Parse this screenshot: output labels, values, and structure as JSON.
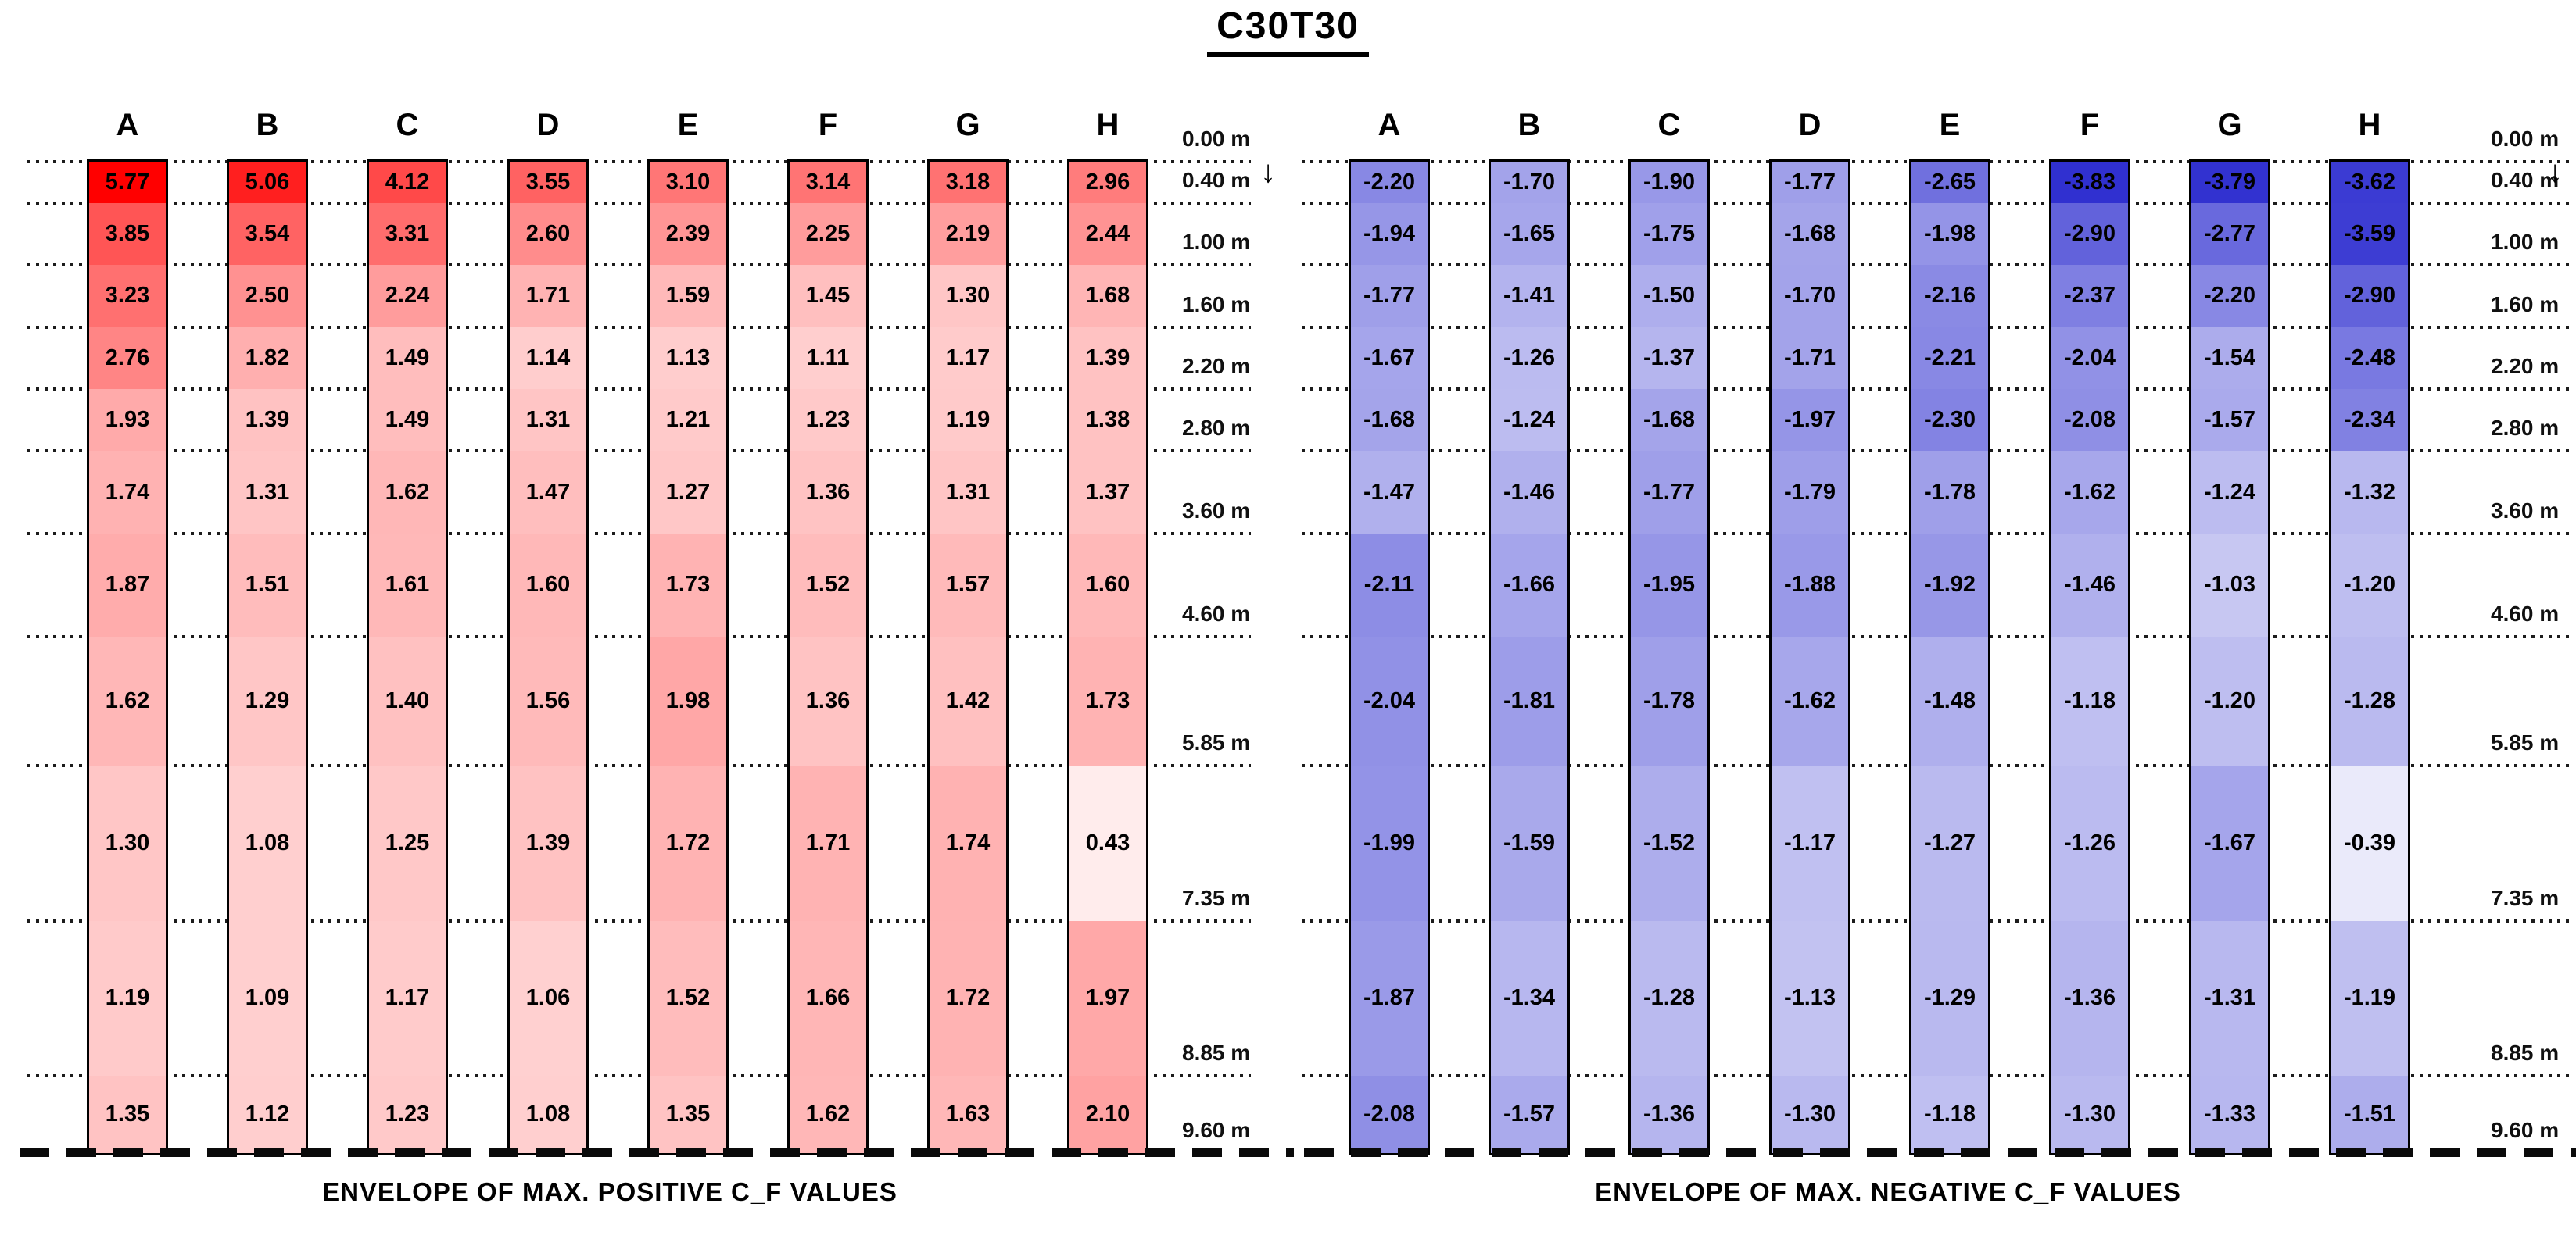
{
  "title": "C30T30",
  "icons": {
    "down_arrow_glyph": "↓"
  },
  "colors": {
    "positive_base": "#FF0000",
    "negative_base": "#3030D0",
    "gridline": "#1C1C1C",
    "text": "#000000"
  },
  "chart_data": [
    {
      "id": "positive",
      "type": "heatmap",
      "caption": "ENVELOPE OF MAX. POSITIVE C_F VALUES",
      "column_labels": [
        "A",
        "B",
        "C",
        "D",
        "E",
        "F",
        "G",
        "H"
      ],
      "depth_labels": [
        "0.00 m",
        "0.40 m",
        "1.00 m",
        "1.60 m",
        "2.20 m",
        "2.80 m",
        "3.60 m",
        "4.60 m",
        "5.85 m",
        "7.35 m",
        "8.85 m",
        "9.60 m"
      ],
      "depths_m": [
        0.0,
        0.4,
        1.0,
        1.6,
        2.2,
        2.8,
        3.6,
        4.6,
        5.85,
        7.35,
        8.85,
        9.6
      ],
      "depth_range_m": [
        0.0,
        9.6
      ],
      "base_color": "#FF0000",
      "max_abs": 5.77,
      "series": [
        {
          "name": "A",
          "values": [
            5.77,
            3.85,
            3.23,
            2.76,
            1.93,
            1.74,
            1.87,
            1.62,
            1.3,
            1.19,
            1.35
          ]
        },
        {
          "name": "B",
          "values": [
            5.06,
            3.54,
            2.5,
            1.82,
            1.39,
            1.31,
            1.51,
            1.29,
            1.08,
            1.09,
            1.12
          ]
        },
        {
          "name": "C",
          "values": [
            4.12,
            3.31,
            2.24,
            1.49,
            1.49,
            1.62,
            1.61,
            1.4,
            1.25,
            1.17,
            1.23
          ]
        },
        {
          "name": "D",
          "values": [
            3.55,
            2.6,
            1.71,
            1.14,
            1.31,
            1.47,
            1.6,
            1.56,
            1.39,
            1.06,
            1.08
          ]
        },
        {
          "name": "E",
          "values": [
            3.1,
            2.39,
            1.59,
            1.13,
            1.21,
            1.27,
            1.73,
            1.98,
            1.72,
            1.52,
            1.35
          ]
        },
        {
          "name": "F",
          "values": [
            3.14,
            2.25,
            1.45,
            1.11,
            1.23,
            1.36,
            1.52,
            1.36,
            1.71,
            1.66,
            1.62
          ]
        },
        {
          "name": "G",
          "values": [
            3.18,
            2.19,
            1.3,
            1.17,
            1.19,
            1.31,
            1.57,
            1.42,
            1.74,
            1.72,
            1.63
          ]
        },
        {
          "name": "H",
          "values": [
            2.96,
            2.44,
            1.68,
            1.39,
            1.38,
            1.37,
            1.6,
            1.73,
            0.43,
            1.97,
            2.1
          ]
        }
      ]
    },
    {
      "id": "negative",
      "type": "heatmap",
      "caption": "ENVELOPE OF MAX. NEGATIVE C_F VALUES",
      "column_labels": [
        "A",
        "B",
        "C",
        "D",
        "E",
        "F",
        "G",
        "H"
      ],
      "depth_labels": [
        "0.00 m",
        "0.40 m",
        "1.00 m",
        "1.60 m",
        "2.20 m",
        "2.80 m",
        "3.60 m",
        "4.60 m",
        "5.85 m",
        "7.35 m",
        "8.85 m",
        "9.60 m"
      ],
      "depths_m": [
        0.0,
        0.4,
        1.0,
        1.6,
        2.2,
        2.8,
        3.6,
        4.6,
        5.85,
        7.35,
        8.85,
        9.6
      ],
      "depth_range_m": [
        0.0,
        9.6
      ],
      "base_color": "#3030D0",
      "max_abs": 3.83,
      "series": [
        {
          "name": "A",
          "values": [
            -2.2,
            -1.94,
            -1.77,
            -1.67,
            -1.68,
            -1.47,
            -2.11,
            -2.04,
            -1.99,
            -1.87,
            -2.08
          ]
        },
        {
          "name": "B",
          "values": [
            -1.7,
            -1.65,
            -1.41,
            -1.26,
            -1.24,
            -1.46,
            -1.66,
            -1.81,
            -1.59,
            -1.34,
            -1.57
          ]
        },
        {
          "name": "C",
          "values": [
            -1.9,
            -1.75,
            -1.5,
            -1.37,
            -1.68,
            -1.77,
            -1.95,
            -1.78,
            -1.52,
            -1.28,
            -1.36
          ]
        },
        {
          "name": "D",
          "values": [
            -1.77,
            -1.68,
            -1.7,
            -1.71,
            -1.97,
            -1.79,
            -1.88,
            -1.62,
            -1.17,
            -1.13,
            -1.3
          ]
        },
        {
          "name": "E",
          "values": [
            -2.65,
            -1.98,
            -2.16,
            -2.21,
            -2.3,
            -1.78,
            -1.92,
            -1.48,
            -1.27,
            -1.29,
            -1.18
          ]
        },
        {
          "name": "F",
          "values": [
            -3.83,
            -2.9,
            -2.37,
            -2.04,
            -2.08,
            -1.62,
            -1.46,
            -1.18,
            -1.26,
            -1.36,
            -1.3
          ]
        },
        {
          "name": "G",
          "values": [
            -3.79,
            -2.77,
            -2.2,
            -1.54,
            -1.57,
            -1.24,
            -1.03,
            -1.2,
            -1.67,
            -1.31,
            -1.33
          ]
        },
        {
          "name": "H",
          "values": [
            -3.62,
            -3.59,
            -2.9,
            -2.48,
            -2.34,
            -1.32,
            -1.2,
            -1.28,
            -0.39,
            -1.19,
            -1.51
          ]
        }
      ]
    }
  ]
}
